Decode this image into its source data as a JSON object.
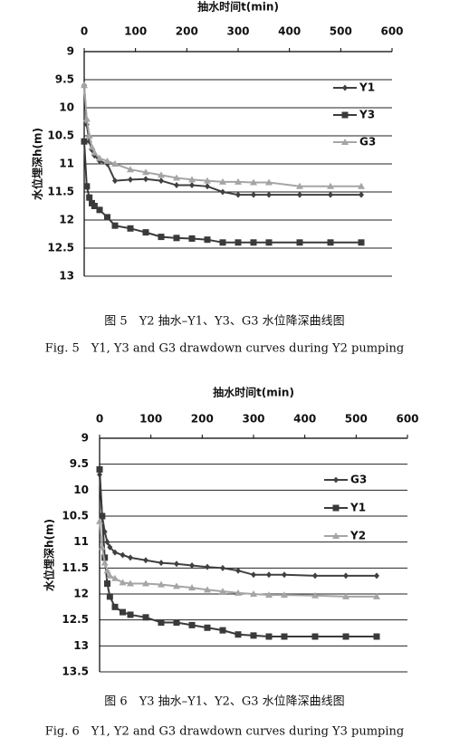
{
  "chart_data": [
    {
      "type": "line",
      "x_label": "抽水时间t(min)",
      "y_label": "水位埋深h(m)",
      "xlim": [
        0,
        600
      ],
      "xticks": [
        0,
        100,
        200,
        300,
        400,
        500,
        600
      ],
      "ylim": [
        9,
        13
      ],
      "yticks": [
        9,
        9.5,
        10,
        10.5,
        11,
        11.5,
        12,
        12.5,
        13
      ],
      "y_inverted": true,
      "grid": true,
      "legend": "upper right",
      "x": [
        0,
        5,
        10,
        15,
        20,
        30,
        45,
        60,
        90,
        120,
        150,
        180,
        210,
        240,
        270,
        300,
        330,
        360,
        420,
        480,
        540
      ],
      "series": [
        {
          "name": "Y1",
          "color": "#404040",
          "marker": "diamond",
          "values": [
            9.6,
            10.3,
            10.6,
            10.75,
            10.85,
            10.95,
            11.0,
            11.3,
            11.28,
            11.27,
            11.3,
            11.38,
            11.38,
            11.4,
            11.5,
            11.55,
            11.55,
            11.55,
            11.55,
            11.55,
            11.55
          ]
        },
        {
          "name": "Y3",
          "color": "#3a3a3a",
          "marker": "square",
          "values": [
            10.6,
            11.4,
            11.6,
            11.7,
            11.75,
            11.82,
            11.95,
            12.1,
            12.15,
            12.22,
            12.3,
            12.32,
            12.33,
            12.35,
            12.4,
            12.4,
            12.4,
            12.4,
            12.4,
            12.4,
            12.4
          ]
        },
        {
          "name": "G3",
          "color": "#a5a5a5",
          "marker": "triangle",
          "values": [
            9.6,
            10.2,
            10.5,
            10.7,
            10.8,
            10.9,
            10.95,
            11.0,
            11.1,
            11.15,
            11.2,
            11.25,
            11.28,
            11.3,
            11.32,
            11.32,
            11.33,
            11.33,
            11.4,
            11.4,
            11.4
          ]
        }
      ],
      "caption_zh": "图 5　Y2 抽水–Y1、Y3、G3 水位降深曲线图",
      "caption_en": "Fig. 5　Y1, Y3 and G3 drawdown curves during Y2 pumping"
    },
    {
      "type": "line",
      "x_label": "抽水时间t(min)",
      "y_label": "水位埋深h(m)",
      "xlim": [
        0,
        600
      ],
      "xticks": [
        0,
        100,
        200,
        300,
        400,
        500,
        600
      ],
      "ylim": [
        9,
        13.5
      ],
      "yticks": [
        9,
        9.5,
        10,
        10.5,
        11,
        11.5,
        12,
        12.5,
        13,
        13.5
      ],
      "y_inverted": true,
      "grid": true,
      "legend": "upper right",
      "x": [
        0,
        5,
        10,
        15,
        20,
        30,
        45,
        60,
        90,
        120,
        150,
        180,
        210,
        240,
        270,
        300,
        330,
        360,
        420,
        480,
        540
      ],
      "series": [
        {
          "name": "G3",
          "color": "#404040",
          "marker": "diamond",
          "values": [
            9.7,
            10.5,
            10.8,
            11.0,
            11.1,
            11.2,
            11.25,
            11.3,
            11.35,
            11.4,
            11.42,
            11.45,
            11.48,
            11.5,
            11.55,
            11.63,
            11.63,
            11.63,
            11.65,
            11.65,
            11.65
          ]
        },
        {
          "name": "Y1",
          "color": "#3a3a3a",
          "marker": "square",
          "values": [
            9.6,
            10.5,
            11.3,
            11.8,
            12.05,
            12.25,
            12.35,
            12.4,
            12.45,
            12.55,
            12.55,
            12.6,
            12.65,
            12.7,
            12.78,
            12.8,
            12.82,
            12.82,
            12.82,
            12.82,
            12.82
          ]
        },
        {
          "name": "Y2",
          "color": "#a5a5a5",
          "marker": "triangle",
          "values": [
            10.6,
            11.1,
            11.4,
            11.55,
            11.65,
            11.7,
            11.78,
            11.8,
            11.8,
            11.82,
            11.85,
            11.88,
            11.92,
            11.95,
            11.98,
            12.0,
            12.02,
            12.02,
            12.03,
            12.05,
            12.05
          ]
        }
      ],
      "caption_zh": "图 6　Y3 抽水–Y1、Y2、G3 水位降深曲线图",
      "caption_en": "Fig. 6　Y1, Y2 and G3 drawdown curves during Y3 pumping"
    }
  ]
}
